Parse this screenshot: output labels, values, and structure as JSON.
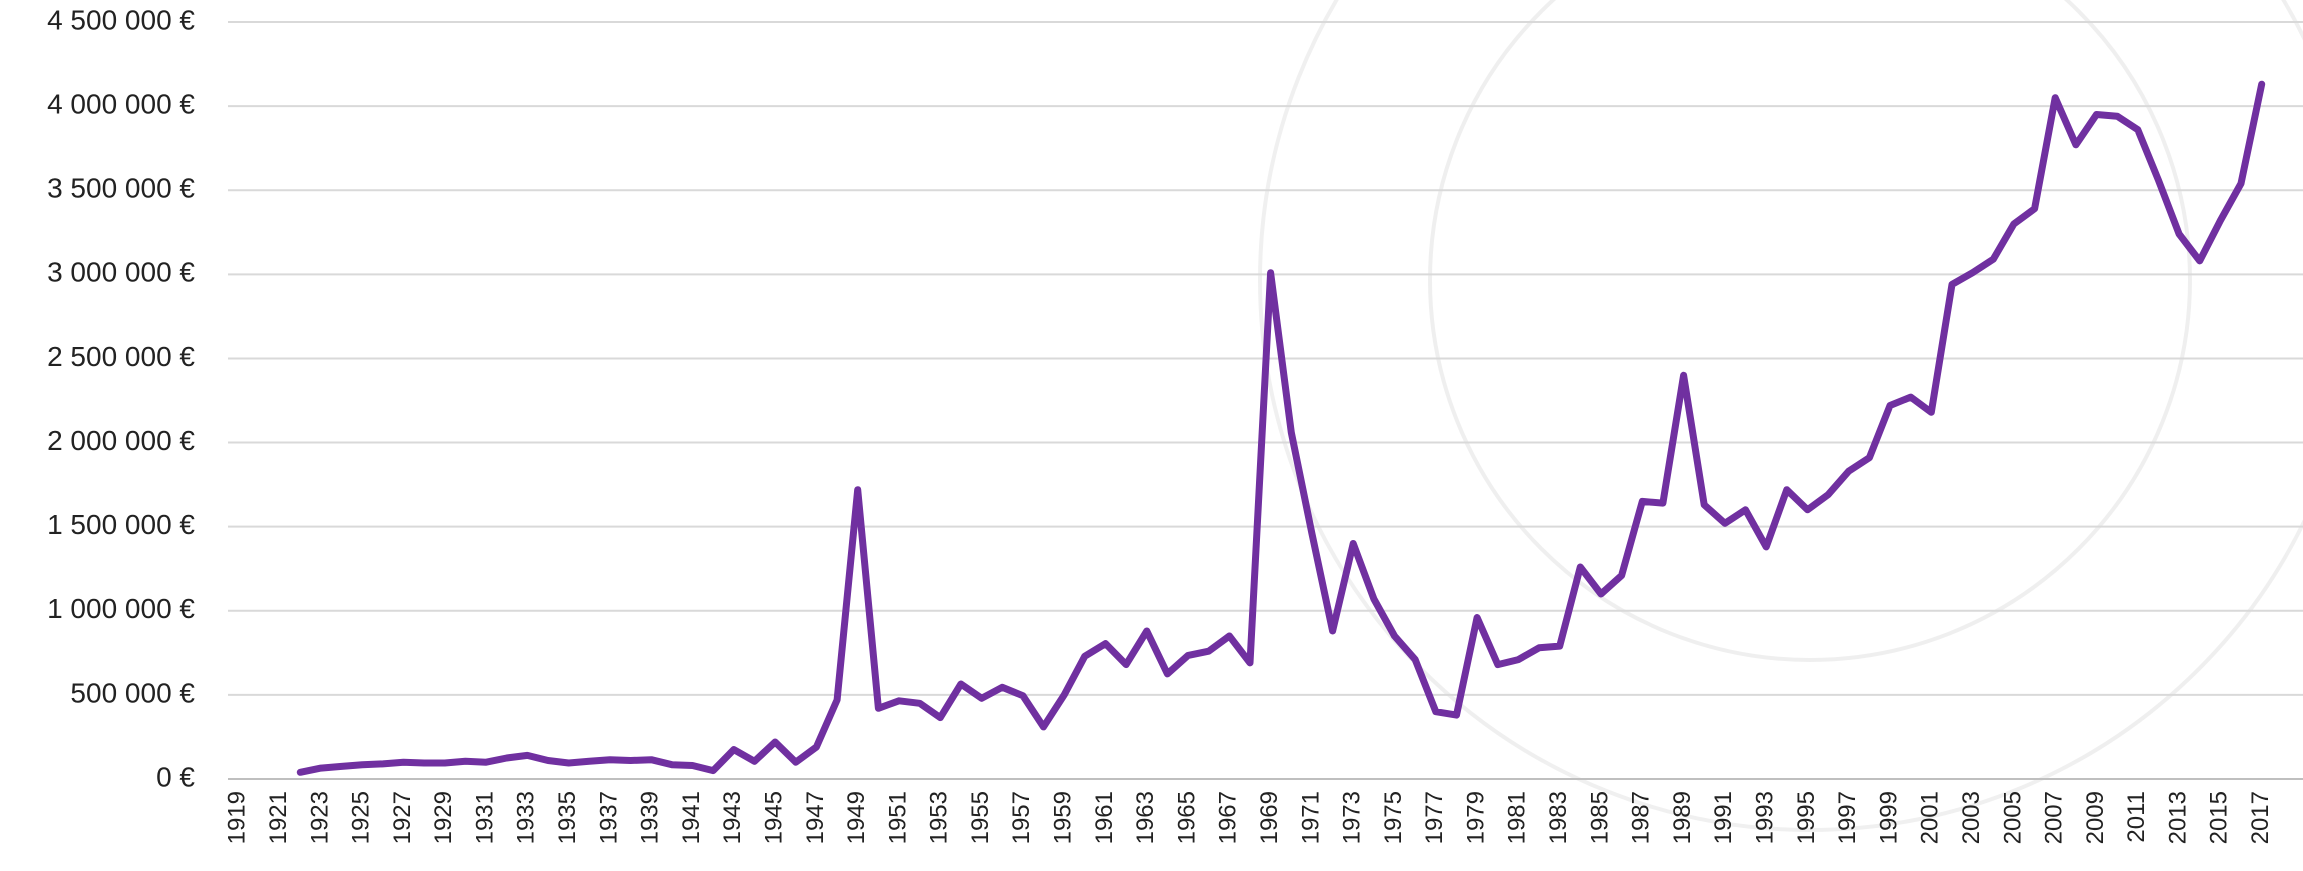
{
  "chart_data": {
    "type": "line",
    "color": "#7030a0",
    "grid": true,
    "x": [
      1922,
      1923,
      1924,
      1925,
      1926,
      1927,
      1928,
      1929,
      1930,
      1931,
      1932,
      1933,
      1934,
      1935,
      1936,
      1937,
      1938,
      1939,
      1940,
      1941,
      1942,
      1943,
      1944,
      1945,
      1946,
      1947,
      1948,
      1949,
      1950,
      1951,
      1952,
      1953,
      1954,
      1955,
      1956,
      1957,
      1958,
      1959,
      1960,
      1961,
      1962,
      1963,
      1964,
      1965,
      1966,
      1967,
      1968,
      1969,
      1970,
      1971,
      1972,
      1973,
      1974,
      1975,
      1976,
      1977,
      1978,
      1979,
      1980,
      1981,
      1982,
      1983,
      1984,
      1985,
      1986,
      1987,
      1988,
      1989,
      1990,
      1991,
      1992,
      1993,
      1994,
      1995,
      1996,
      1997,
      1998,
      1999,
      2000,
      2001,
      2002,
      2003,
      2004,
      2005,
      2006,
      2007,
      2008,
      2009,
      2010,
      2011,
      2012,
      2013,
      2014,
      2015,
      2016,
      2017
    ],
    "values": [
      40000,
      65000,
      75000,
      85000,
      90000,
      100000,
      95000,
      95000,
      105000,
      100000,
      125000,
      140000,
      110000,
      95000,
      105000,
      115000,
      110000,
      115000,
      85000,
      80000,
      50000,
      175000,
      105000,
      220000,
      100000,
      190000,
      470000,
      1720000,
      420000,
      465000,
      450000,
      365000,
      565000,
      480000,
      545000,
      495000,
      310000,
      500000,
      730000,
      805000,
      680000,
      880000,
      625000,
      735000,
      760000,
      850000,
      690000,
      3010000,
      2060000,
      1460000,
      880000,
      1400000,
      1070000,
      850000,
      710000,
      400000,
      380000,
      960000,
      680000,
      710000,
      780000,
      790000,
      1260000,
      1100000,
      1210000,
      1650000,
      1640000,
      2400000,
      1630000,
      1520000,
      1600000,
      1380000,
      1720000,
      1600000,
      1690000,
      1830000,
      1910000,
      2220000,
      2270000,
      2180000,
      2940000,
      3010000,
      3090000,
      3300000,
      3390000,
      4050000,
      3770000,
      3950000,
      3940000,
      3860000,
      3560000,
      3240000,
      3080000,
      3320000,
      3540000,
      4130000
    ],
    "xlim": [
      1918.5,
      2017.5
    ],
    "xticks": [
      1919,
      1921,
      1923,
      1925,
      1927,
      1929,
      1931,
      1933,
      1935,
      1937,
      1939,
      1941,
      1943,
      1945,
      1947,
      1949,
      1951,
      1953,
      1955,
      1957,
      1959,
      1961,
      1963,
      1965,
      1967,
      1969,
      1971,
      1973,
      1975,
      1977,
      1979,
      1981,
      1983,
      1985,
      1987,
      1989,
      1991,
      1993,
      1995,
      1997,
      1999,
      2001,
      2003,
      2005,
      2007,
      2009,
      2011,
      2013,
      2015,
      2017
    ],
    "ylim": [
      0,
      4500000
    ],
    "yticks": [
      {
        "value": 0,
        "label": "0 €"
      },
      {
        "value": 500000,
        "label": "500 000 €"
      },
      {
        "value": 1000000,
        "label": "1 000 000 €"
      },
      {
        "value": 1500000,
        "label": "1 500 000 €"
      },
      {
        "value": 2000000,
        "label": "2 000 000 €"
      },
      {
        "value": 2500000,
        "label": "2 500 000 €"
      },
      {
        "value": 3000000,
        "label": "3 000 000 €"
      },
      {
        "value": 3500000,
        "label": "3 500 000 €"
      },
      {
        "value": 4000000,
        "label": "4 000 000 €"
      },
      {
        "value": 4500000,
        "label": "4 500 000 €"
      }
    ]
  }
}
